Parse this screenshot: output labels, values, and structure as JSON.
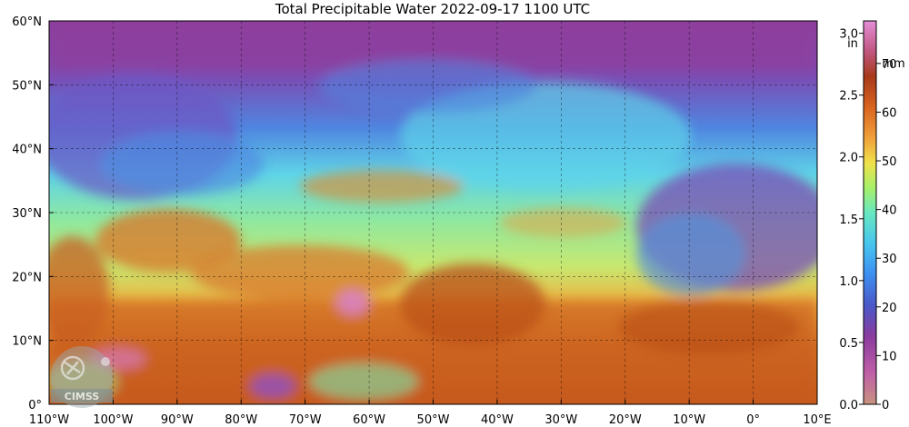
{
  "title": "Total Precipitable Water  2022-09-17 1100 UTC",
  "map": {
    "lon_min": -110,
    "lon_max": 10,
    "lat_min": 0,
    "lat_max": 60,
    "lon_ticks": [
      {
        "value": -110,
        "label": "110°W"
      },
      {
        "value": -100,
        "label": "100°W"
      },
      {
        "value": -90,
        "label": "90°W"
      },
      {
        "value": -80,
        "label": "80°W"
      },
      {
        "value": -70,
        "label": "70°W"
      },
      {
        "value": -60,
        "label": "60°W"
      },
      {
        "value": -50,
        "label": "50°W"
      },
      {
        "value": -40,
        "label": "40°W"
      },
      {
        "value": -30,
        "label": "30°W"
      },
      {
        "value": -20,
        "label": "20°W"
      },
      {
        "value": -10,
        "label": "10°W"
      },
      {
        "value": 0,
        "label": "0°"
      },
      {
        "value": 10,
        "label": "10°E"
      }
    ],
    "lat_ticks": [
      {
        "value": 0,
        "label": "0°"
      },
      {
        "value": 10,
        "label": "10°N"
      },
      {
        "value": 20,
        "label": "20°N"
      },
      {
        "value": 30,
        "label": "30°N"
      },
      {
        "value": 40,
        "label": "40°N"
      },
      {
        "value": 50,
        "label": "50°N"
      },
      {
        "value": 60,
        "label": "60°N"
      }
    ],
    "colors": {
      "ocean_base": "#7fe0a8",
      "moist_tropics": "#d9772a",
      "very_moist": "#b84b17",
      "extreme": "#d77bd1",
      "dry_north": "#8e3f9c",
      "dry_mid": "#4f86e0",
      "moderate": "#5fd4e8"
    }
  },
  "colorbar": {
    "unit_in": "in",
    "unit_mm": "mm",
    "in_min": 0,
    "in_max": 3.1,
    "mm_max": 78.74,
    "in_ticks": [
      {
        "value": 0.0,
        "label": "0.0"
      },
      {
        "value": 0.5,
        "label": "0.5"
      },
      {
        "value": 1.0,
        "label": "1.0"
      },
      {
        "value": 1.5,
        "label": "1.5"
      },
      {
        "value": 2.0,
        "label": "2.0"
      },
      {
        "value": 2.5,
        "label": "2.5"
      },
      {
        "value": 3.0,
        "label": "3.0"
      }
    ],
    "mm_ticks": [
      {
        "value": 0,
        "label": "0"
      },
      {
        "value": 10,
        "label": "10"
      },
      {
        "value": 20,
        "label": "20"
      },
      {
        "value": 30,
        "label": "30"
      },
      {
        "value": 40,
        "label": "40"
      },
      {
        "value": 50,
        "label": "50"
      },
      {
        "value": 60,
        "label": "60"
      },
      {
        "value": 70,
        "label": "70"
      }
    ],
    "stops": [
      {
        "in": 0.0,
        "color": "#c8937e"
      },
      {
        "in": 0.25,
        "color": "#c05fa8"
      },
      {
        "in": 0.55,
        "color": "#8a3b9e"
      },
      {
        "in": 0.8,
        "color": "#4a58c8"
      },
      {
        "in": 1.05,
        "color": "#3d8ff0"
      },
      {
        "in": 1.3,
        "color": "#47c6ef"
      },
      {
        "in": 1.55,
        "color": "#69e8c0"
      },
      {
        "in": 1.75,
        "color": "#a6f06a"
      },
      {
        "in": 1.95,
        "color": "#f0e14a"
      },
      {
        "in": 2.15,
        "color": "#f0a23a"
      },
      {
        "in": 2.4,
        "color": "#d9641f"
      },
      {
        "in": 2.65,
        "color": "#a83a1a"
      },
      {
        "in": 2.85,
        "color": "#c0567f"
      },
      {
        "in": 3.1,
        "color": "#e58ed8"
      }
    ]
  },
  "logo": {
    "text": "CIMSS"
  }
}
